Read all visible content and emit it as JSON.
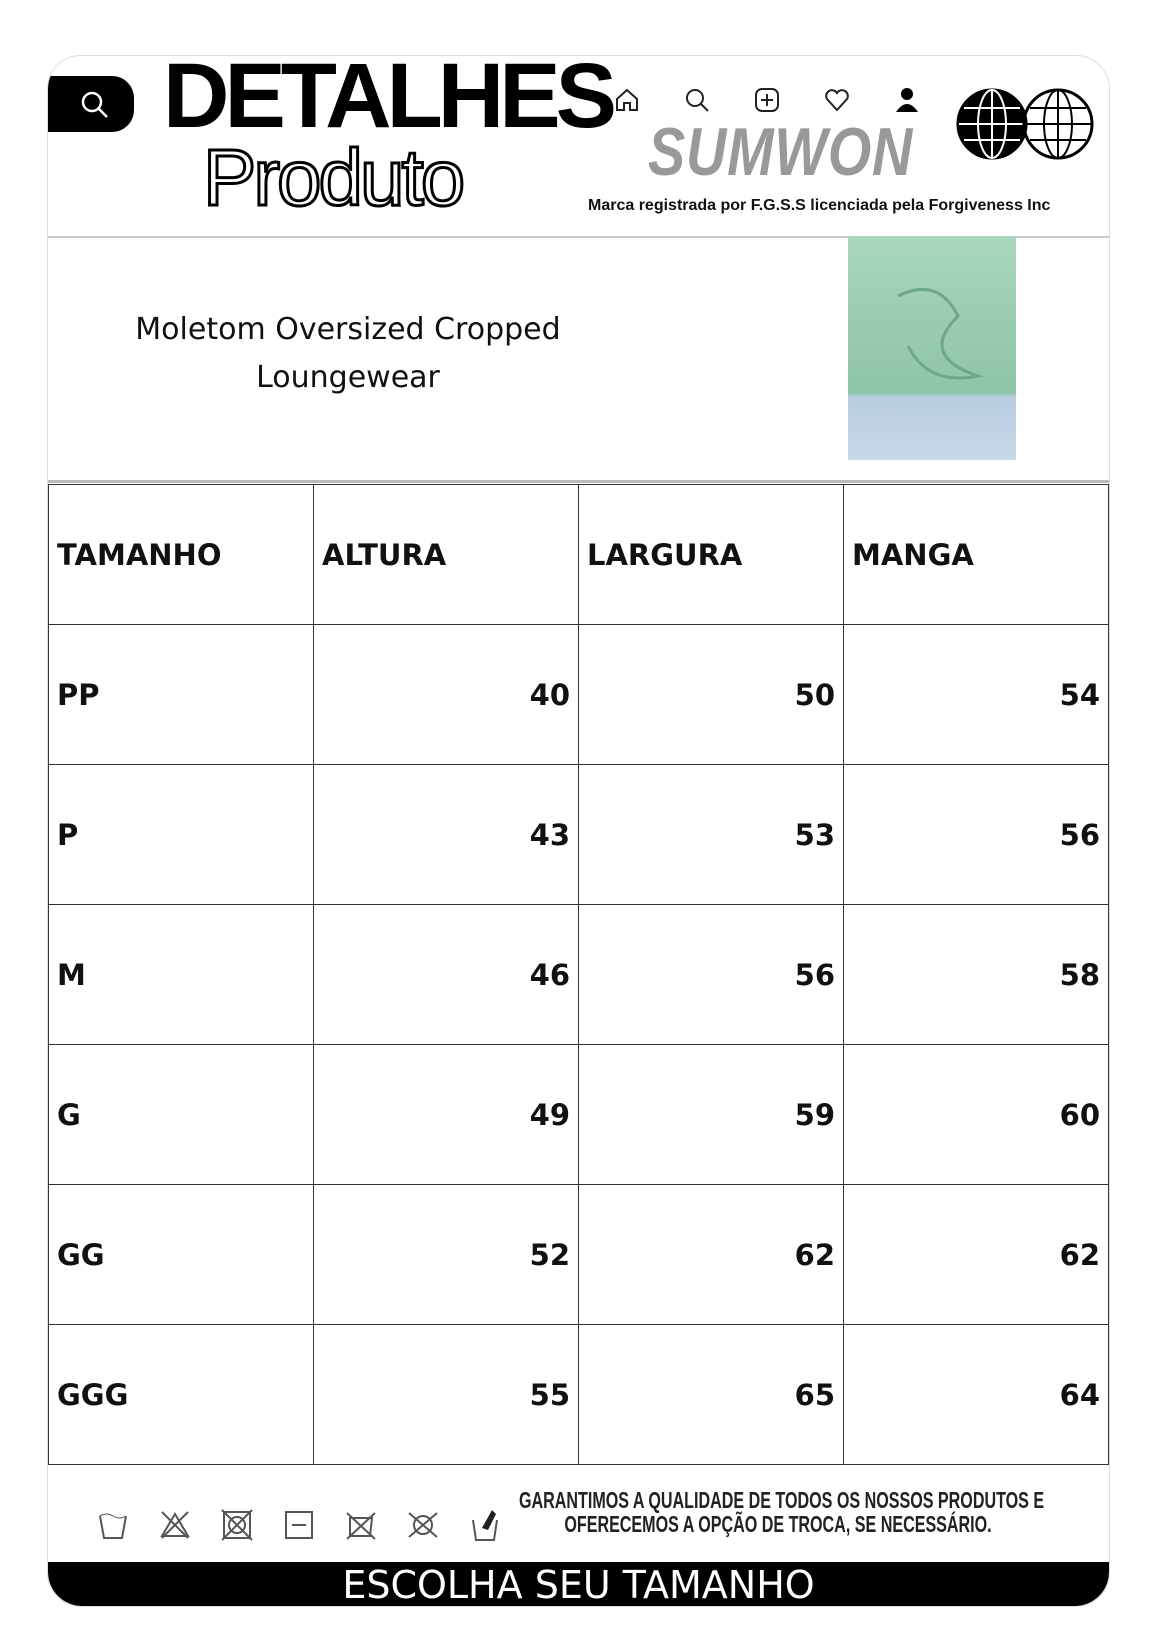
{
  "header": {
    "title_line1": "DETALHES",
    "title_line2": "Produto",
    "brand": "SUMWON",
    "trademark": "Marca registrada por F.G.S.S licenciada pela Forgiveness Inc",
    "icons": [
      "search-icon",
      "home-icon",
      "search-icon",
      "add-icon",
      "heart-icon",
      "user-icon",
      "globe-icon",
      "globe-icon"
    ]
  },
  "product": {
    "name_line1": "Moletom Oversized Cropped",
    "name_line2": "Loungewear"
  },
  "table": {
    "headers": [
      "TAMANHO",
      "ALTURA",
      "LARGURA",
      "MANGA"
    ],
    "rows": [
      [
        "PP",
        "40",
        "50",
        "54"
      ],
      [
        "P",
        "43",
        "53",
        "56"
      ],
      [
        "M",
        "46",
        "56",
        "58"
      ],
      [
        "G",
        "49",
        "59",
        "60"
      ],
      [
        "GG",
        "52",
        "62",
        "62"
      ],
      [
        "GGG",
        "55",
        "65",
        "64"
      ]
    ]
  },
  "footer": {
    "guarantee_line1": "GARANTIMOS A QUALIDADE DE TODOS OS NOSSOS PRODUTOS E",
    "guarantee_line2": "OFERECEMOS A OPÇÃO DE TROCA, SE NECESSÁRIO.",
    "banner": "ESCOLHA SEU TAMANHO",
    "care_icons": [
      "wash-30-icon",
      "no-bleach-icon",
      "no-tumble-dry-icon",
      "dry-flat-icon",
      "no-iron-icon",
      "no-dry-clean-icon",
      "hand-wash-icon"
    ]
  }
}
